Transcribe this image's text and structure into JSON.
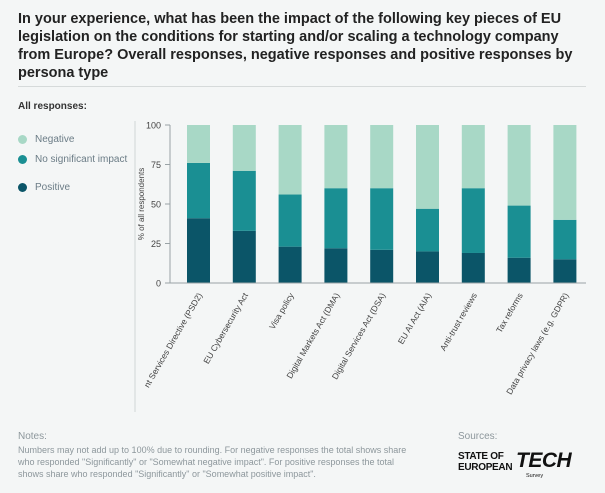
{
  "title": "In your experience, what has been the impact of the following key pieces of EU legislation on the conditions for starting and/or scaling a technology company from Europe? Overall responses, negative responses and positive responses by persona type",
  "section_label": "All responses:",
  "legend": [
    {
      "label": "Negative",
      "color": "#a8d8c6"
    },
    {
      "label": "No significant impact",
      "color": "#1a8f93"
    },
    {
      "label": "Positive",
      "color": "#0b5568"
    }
  ],
  "chart_data": {
    "type": "bar",
    "stacked": true,
    "ylabel": "% of all respondents",
    "ylim": [
      0,
      100
    ],
    "yticks": [
      0,
      25,
      50,
      75,
      100
    ],
    "categories": [
      "nt Services Directive (PSD2)",
      "EU Cybersecurity Act",
      "Visa policy",
      "Digital Markets Act (DMA)",
      "Digital Services Act (DSA)",
      "EU AI Act (AIA)",
      "Anti-trust reviews",
      "Tax reforms",
      "Data privacy laws (e.g. GDPR)"
    ],
    "series": [
      {
        "name": "Positive",
        "color": "#0b5568",
        "values": [
          41,
          33,
          23,
          22,
          21,
          20,
          19,
          16,
          15
        ]
      },
      {
        "name": "No significant impact",
        "color": "#1a8f93",
        "values": [
          35,
          38,
          33,
          38,
          39,
          27,
          41,
          33,
          25
        ]
      },
      {
        "name": "Negative",
        "color": "#a8d8c6",
        "values": [
          24,
          29,
          44,
          40,
          40,
          53,
          40,
          51,
          60
        ]
      }
    ]
  },
  "notes": {
    "title": "Notes:",
    "text": "Numbers may not add up to 100% due to rounding. For negative responses the total shows share who responded \"Significantly\" or \"Somewhat negative impact\". For positive responses the total shows share who responded \"Significantly\" or \"Somewhat positive impact\"."
  },
  "sources": {
    "title": "Sources:",
    "logo_line1": "STATE OF",
    "logo_line2": "EUROPEAN",
    "logo_big": "TECH",
    "logo_small": "Survey"
  }
}
